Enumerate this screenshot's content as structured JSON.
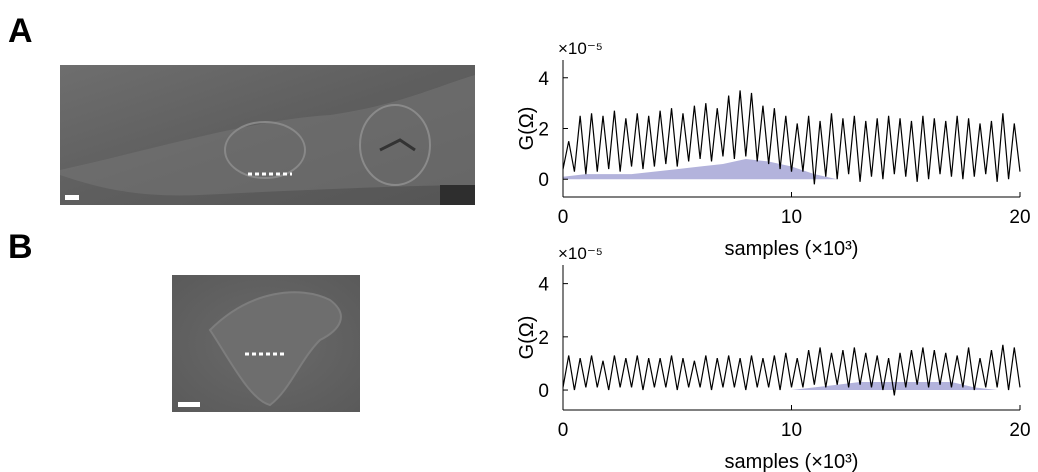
{
  "panels": [
    {
      "label": "A"
    },
    {
      "label": "B"
    }
  ],
  "chart_data": [
    {
      "type": "line",
      "y_multiplier": "×10⁻⁵",
      "ylabel": "G(Ω)",
      "xlabel": "samples (×10³)",
      "xlim": [
        0,
        20
      ],
      "xticks": [
        0,
        10,
        20
      ],
      "ylim": [
        -0.7,
        4.7
      ],
      "yticks": [
        0,
        2,
        4
      ],
      "series": [
        {
          "area": true,
          "color": "#b3b3dc",
          "x": [
            0,
            1,
            2,
            3,
            4,
            5,
            6,
            7,
            8,
            9,
            10,
            11,
            12,
            13,
            14,
            15,
            16,
            17,
            18,
            19,
            20
          ],
          "values": [
            0.1,
            0.2,
            0.2,
            0.2,
            0.3,
            0.4,
            0.5,
            0.6,
            0.8,
            0.7,
            0.5,
            0.2,
            0,
            0,
            0,
            0,
            0,
            0,
            0,
            0,
            0
          ]
        },
        {
          "area": false,
          "color": "#000000",
          "x": [
            0,
            0.25,
            0.5,
            0.75,
            1,
            1.25,
            1.5,
            1.75,
            2,
            2.25,
            2.5,
            2.75,
            3,
            3.25,
            3.5,
            3.75,
            4,
            4.25,
            4.5,
            4.75,
            5,
            5.25,
            5.5,
            5.75,
            6,
            6.25,
            6.5,
            6.75,
            7,
            7.25,
            7.5,
            7.75,
            8,
            8.25,
            8.5,
            8.75,
            9,
            9.25,
            9.5,
            9.75,
            10,
            10.25,
            10.5,
            10.75,
            11,
            11.25,
            11.5,
            11.75,
            12,
            12.25,
            12.5,
            12.75,
            13,
            13.25,
            13.5,
            13.75,
            14,
            14.25,
            14.5,
            14.75,
            15,
            15.25,
            15.5,
            15.75,
            16,
            16.25,
            16.5,
            16.75,
            17,
            17.25,
            17.5,
            17.75,
            18,
            18.25,
            18.5,
            18.75,
            19,
            19.25,
            19.5,
            19.75,
            20
          ],
          "values": [
            0.4,
            1.5,
            0.3,
            2.5,
            0.2,
            2.6,
            0.3,
            2.5,
            0.4,
            2.7,
            0.3,
            2.4,
            0.5,
            2.6,
            0.4,
            2.5,
            0.5,
            2.7,
            0.6,
            2.8,
            0.5,
            2.6,
            0.7,
            2.9,
            0.8,
            3.0,
            0.7,
            2.8,
            0.9,
            3.3,
            0.8,
            3.5,
            0.9,
            3.4,
            0.7,
            2.9,
            0.6,
            2.8,
            0.4,
            2.5,
            0.3,
            2.2,
            0.3,
            2.5,
            -0.2,
            2.3,
            0.1,
            2.6,
            0.0,
            2.4,
            0.2,
            2.5,
            -0.1,
            2.3,
            0.1,
            2.4,
            0.0,
            2.5,
            0.2,
            2.4,
            0.1,
            2.3,
            -0.1,
            2.5,
            0.0,
            2.4,
            0.2,
            2.3,
            0.1,
            2.5,
            0.0,
            2.4,
            0.1,
            2.2,
            0.2,
            2.3,
            -0.1,
            2.6,
            0.0,
            2.2,
            0.3
          ]
        }
      ]
    },
    {
      "type": "line",
      "y_multiplier": "×10⁻⁵",
      "ylabel": "G(Ω)",
      "xlabel": "samples (×10³)",
      "xlim": [
        0,
        20
      ],
      "xticks": [
        0,
        10,
        20
      ],
      "ylim": [
        -0.75,
        4.7
      ],
      "yticks": [
        0,
        2,
        4
      ],
      "series": [
        {
          "area": true,
          "color": "#b3b3dc",
          "x": [
            0,
            1,
            2,
            3,
            4,
            5,
            6,
            7,
            8,
            9,
            10,
            11,
            12,
            13,
            14,
            15,
            16,
            17,
            18,
            19,
            20
          ],
          "values": [
            0,
            0,
            0,
            0,
            0,
            0,
            0,
            0,
            0,
            0,
            0,
            0.1,
            0.2,
            0.3,
            0.3,
            0.3,
            0.3,
            0.3,
            0.1,
            0,
            0
          ]
        },
        {
          "area": false,
          "color": "#000000",
          "x": [
            0,
            0.25,
            0.5,
            0.75,
            1,
            1.25,
            1.5,
            1.75,
            2,
            2.25,
            2.5,
            2.75,
            3,
            3.25,
            3.5,
            3.75,
            4,
            4.25,
            4.5,
            4.75,
            5,
            5.25,
            5.5,
            5.75,
            6,
            6.25,
            6.5,
            6.75,
            7,
            7.25,
            7.5,
            7.75,
            8,
            8.25,
            8.5,
            8.75,
            9,
            9.25,
            9.5,
            9.75,
            10,
            10.25,
            10.5,
            10.75,
            11,
            11.25,
            11.5,
            11.75,
            12,
            12.25,
            12.5,
            12.75,
            13,
            13.25,
            13.5,
            13.75,
            14,
            14.25,
            14.5,
            14.75,
            15,
            15.25,
            15.5,
            15.75,
            16,
            16.25,
            16.5,
            16.75,
            17,
            17.25,
            17.5,
            17.75,
            18,
            18.25,
            18.5,
            18.75,
            19,
            19.25,
            19.5,
            19.75,
            20
          ],
          "values": [
            0.1,
            1.3,
            0.0,
            1.2,
            0.1,
            1.3,
            0.1,
            1.1,
            0.0,
            1.3,
            0.1,
            1.2,
            0.1,
            1.3,
            0.0,
            1.2,
            0.1,
            1.2,
            0.1,
            1.3,
            0.0,
            1.2,
            0.1,
            1.1,
            0.1,
            1.3,
            0.0,
            1.2,
            0.1,
            1.3,
            0.1,
            1.2,
            0.0,
            1.3,
            0.1,
            1.2,
            0.1,
            1.3,
            0.0,
            1.4,
            0.1,
            1.2,
            0.1,
            1.5,
            0.2,
            1.6,
            0.1,
            1.4,
            0.2,
            1.5,
            0.1,
            1.6,
            0.2,
            1.4,
            0.1,
            1.3,
            0.0,
            1.2,
            -0.2,
            1.4,
            0.1,
            1.5,
            0.2,
            1.6,
            0.1,
            1.5,
            0.2,
            1.4,
            0.1,
            1.3,
            0.1,
            1.6,
            0.0,
            1.2,
            0.1,
            1.5,
            0.1,
            1.7,
            0.0,
            1.6,
            0.1
          ]
        }
      ]
    }
  ]
}
